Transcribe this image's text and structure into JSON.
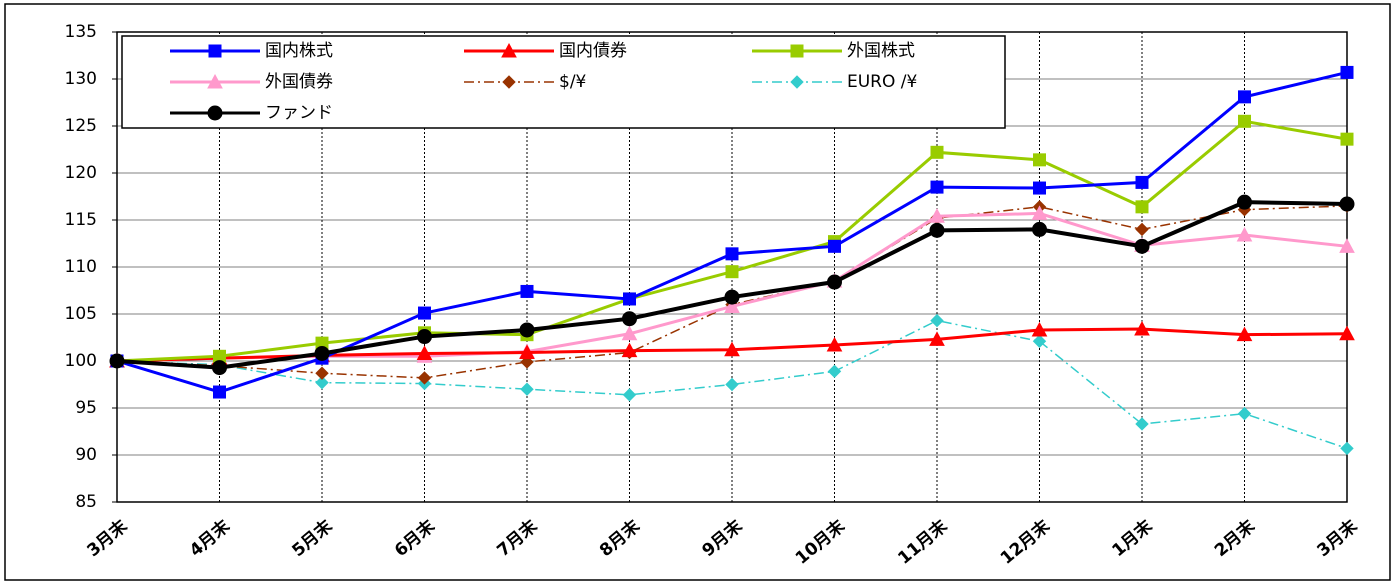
{
  "chart_data": {
    "type": "line",
    "categories": [
      "3月末",
      "4月末",
      "5月末",
      "6月末",
      "7月末",
      "8月末",
      "9月末",
      "10月末",
      "11月末",
      "12月末",
      "1月末",
      "2月末",
      "3月末"
    ],
    "series": [
      {
        "name": "国内株式",
        "color": "#0000ff",
        "marker": "square",
        "dash": "solid",
        "values": [
          100,
          96.7,
          100.3,
          105.1,
          107.4,
          106.6,
          111.4,
          112.2,
          118.5,
          118.4,
          119.0,
          128.1,
          130.7
        ]
      },
      {
        "name": "国内債券",
        "color": "#ff0000",
        "marker": "triangle",
        "dash": "solid",
        "values": [
          100,
          100.3,
          100.6,
          100.8,
          100.9,
          101.1,
          101.2,
          101.7,
          102.3,
          103.3,
          103.4,
          102.8,
          102.9
        ]
      },
      {
        "name": "外国株式",
        "color": "#99cc00",
        "marker": "square",
        "dash": "solid",
        "values": [
          100,
          100.5,
          101.9,
          103.0,
          102.8,
          106.6,
          109.5,
          112.7,
          122.2,
          121.4,
          116.4,
          125.5,
          123.6
        ]
      },
      {
        "name": "外国債券",
        "color": "#ff99cc",
        "marker": "triangle",
        "dash": "solid",
        "values": [
          100,
          100.3,
          100.5,
          100.5,
          101.0,
          102.9,
          105.8,
          108.5,
          115.4,
          115.7,
          112.3,
          113.4,
          112.2
        ]
      },
      {
        "name": "$/¥",
        "color": "#993300",
        "marker": "diamond",
        "dash": "dashdot",
        "values": [
          100,
          99.5,
          98.7,
          98.2,
          99.9,
          100.9,
          106.0,
          108.5,
          115.2,
          116.4,
          114.0,
          116.1,
          116.5
        ]
      },
      {
        "name": "EURO /¥",
        "color": "#33cccc",
        "marker": "diamond",
        "dash": "dashdot",
        "values": [
          100,
          99.6,
          97.7,
          97.6,
          97.0,
          96.4,
          97.5,
          98.9,
          104.3,
          102.1,
          93.3,
          94.4,
          90.7
        ]
      },
      {
        "name": "ファンド",
        "color": "#000000",
        "marker": "circle",
        "dash": "solid",
        "values": [
          100,
          99.3,
          100.8,
          102.6,
          103.3,
          104.5,
          106.8,
          108.4,
          113.9,
          114.0,
          112.2,
          116.9,
          116.7
        ]
      }
    ],
    "ylim": [
      85,
      135
    ],
    "yticks": [
      85,
      90,
      95,
      100,
      105,
      110,
      115,
      120,
      125,
      130,
      135
    ],
    "grid": true,
    "legend": "top-left"
  }
}
